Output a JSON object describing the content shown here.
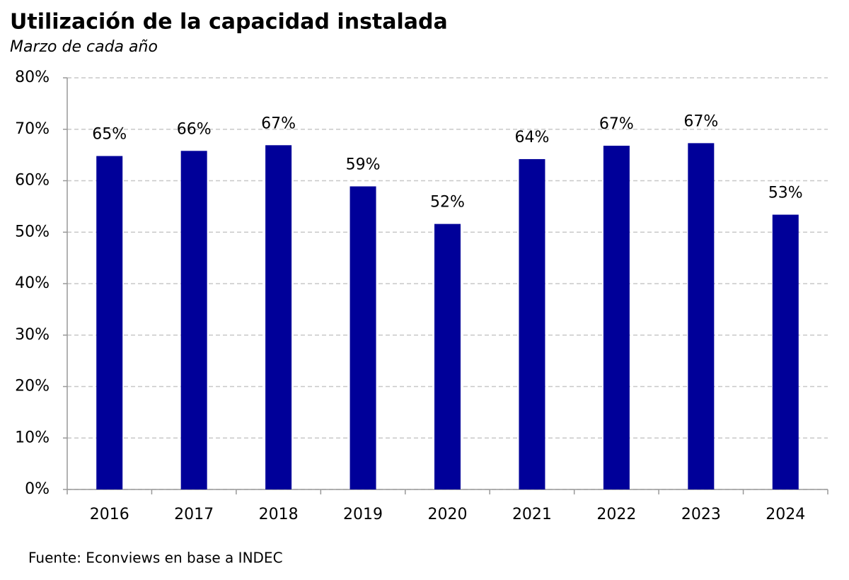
{
  "chart_data": {
    "type": "bar",
    "title": "Utilización de la capacidad instalada",
    "subtitle": "Marzo de cada año",
    "source": "Fuente: Econviews en base a INDEC",
    "categories": [
      "2016",
      "2017",
      "2018",
      "2019",
      "2020",
      "2021",
      "2022",
      "2023",
      "2024"
    ],
    "values": [
      64.8,
      65.8,
      66.9,
      58.9,
      51.6,
      64.2,
      66.8,
      67.3,
      53.4
    ],
    "value_labels": [
      "65%",
      "66%",
      "67%",
      "59%",
      "52%",
      "64%",
      "67%",
      "67%",
      "53%"
    ],
    "color": "#000099",
    "ylim": [
      0,
      80
    ],
    "yticks": [
      {
        "value": 0,
        "label": "0%"
      },
      {
        "value": 10,
        "label": "10%"
      },
      {
        "value": 20,
        "label": "20%"
      },
      {
        "value": 30,
        "label": "30%"
      },
      {
        "value": 40,
        "label": "40%"
      },
      {
        "value": 50,
        "label": "50%"
      },
      {
        "value": 60,
        "label": "60%"
      },
      {
        "value": 70,
        "label": "70%"
      },
      {
        "value": 80,
        "label": "80%"
      }
    ],
    "grid": true
  }
}
